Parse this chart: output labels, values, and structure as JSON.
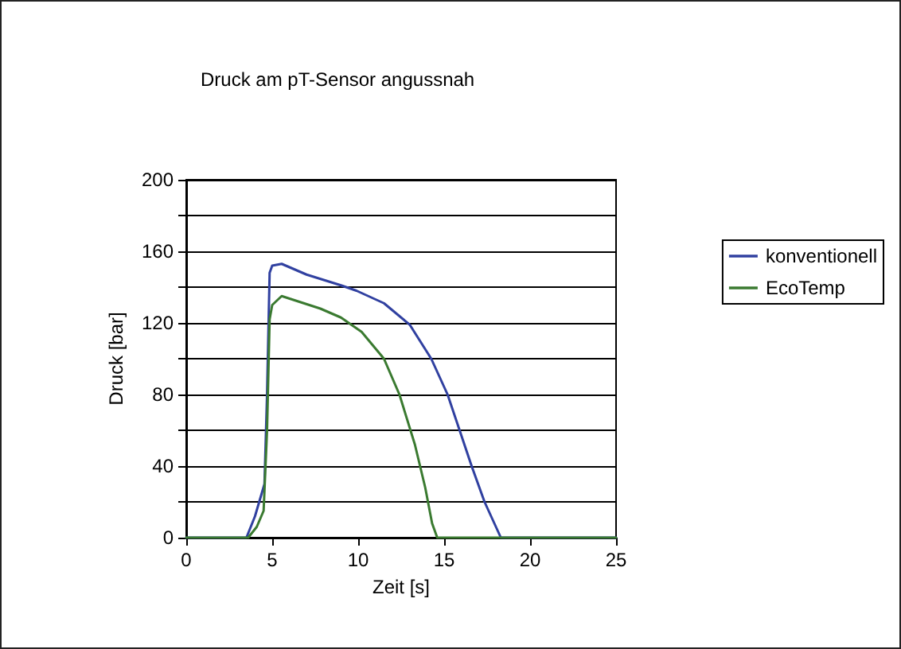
{
  "chart_data": {
    "type": "line",
    "title": "Druck am pT-Sensor angussnah",
    "xlabel": "Zeit [s]",
    "ylabel": "Druck [bar]",
    "xlim": [
      0,
      25
    ],
    "xticks": [
      0,
      5,
      10,
      15,
      20,
      25
    ],
    "ylim": [
      0,
      200
    ],
    "yticks": [
      0,
      {
        "value": 20,
        "label": null
      },
      40,
      {
        "value": 60,
        "label": null
      },
      80,
      {
        "value": 100,
        "label": null
      },
      120,
      {
        "value": 140,
        "label": null
      },
      160,
      {
        "value": 180,
        "label": null
      },
      200
    ],
    "grid": "y",
    "legend": "right",
    "marker": "none",
    "line_style": "solid",
    "series": [
      {
        "name": "konventionell",
        "color": "#3040a0",
        "x": [
          0,
          3.5,
          4.0,
          4.55,
          4.7,
          4.85,
          5.0,
          5.55,
          7,
          9,
          9.9,
          11.5,
          13.0,
          14.25,
          15.2,
          16.6,
          17.35,
          18.3,
          25
        ],
        "values": [
          0,
          0,
          12,
          30,
          80,
          148,
          152,
          153,
          147,
          141,
          138,
          131,
          119,
          100,
          80,
          40,
          20,
          0,
          0
        ]
      },
      {
        "name": "EcoTemp",
        "color": "#3a7a30",
        "x": [
          0,
          3.6,
          4.1,
          4.5,
          4.7,
          4.85,
          5.0,
          5.55,
          7.8,
          9.0,
          10.2,
          11.5,
          12.4,
          13.3,
          13.9,
          14.3,
          14.6,
          25
        ],
        "values": [
          0,
          0,
          6,
          15,
          60,
          122,
          130,
          135,
          128,
          123,
          115,
          100,
          80,
          52,
          28,
          8,
          0,
          0
        ]
      }
    ]
  }
}
